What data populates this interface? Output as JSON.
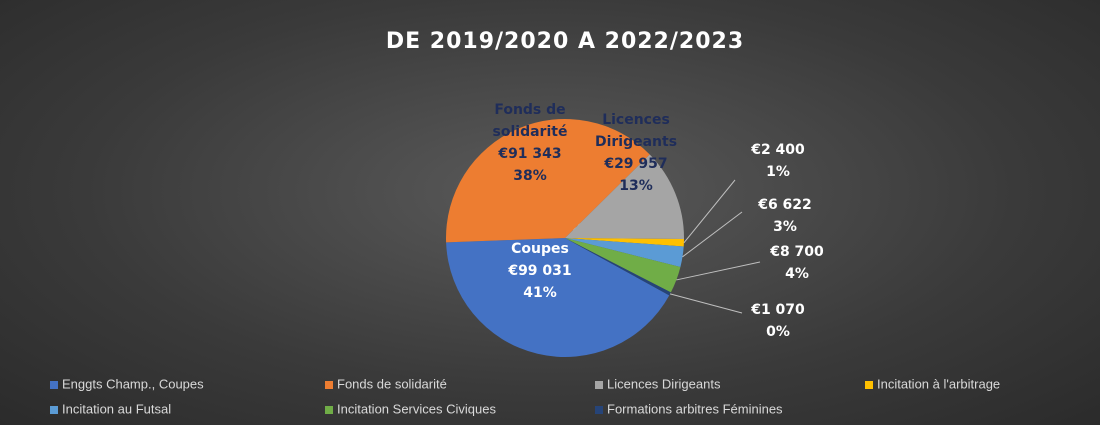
{
  "chart_data": {
    "type": "pie",
    "title": "DE 2019/2020 A 2022/2023",
    "categories": [
      "Enggts Champ., Coupes",
      "Fonds de solidarité",
      "Licences Dirigeants",
      "Incitation à l'arbitrage",
      "Incitation au Futsal",
      "Incitation Services Civiques",
      "Formations arbitres Féminines"
    ],
    "values": [
      99031,
      91343,
      29957,
      2400,
      6622,
      8700,
      1070
    ],
    "value_labels": [
      "€99 031",
      "€91 343",
      "€29 957",
      "€2 400",
      "€6 622",
      "€8 700",
      "€1 070"
    ],
    "percent_labels": [
      "41%",
      "38%",
      "13%",
      "1%",
      "3%",
      "4%",
      "0%"
    ],
    "colors": [
      "#4472c4",
      "#ed7d31",
      "#a5a5a5",
      "#ffc000",
      "#5b9bd5",
      "#70ad47",
      "#264478"
    ],
    "legend": "bottom"
  }
}
